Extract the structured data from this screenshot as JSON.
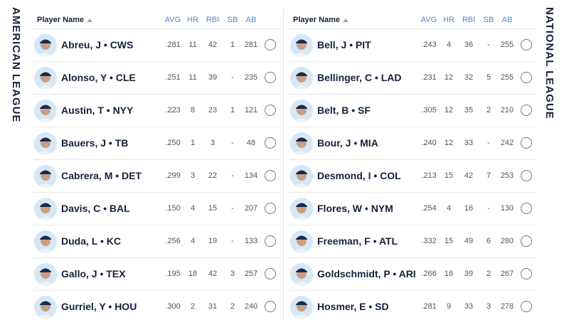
{
  "leagues": [
    {
      "label": "AMERICAN LEAGUE",
      "columns": [
        "Player Name",
        "AVG",
        "HR",
        "RBI",
        "SB",
        "AB"
      ],
      "rows": [
        [
          "Abreu, J • CWS",
          ".281",
          "11",
          "42",
          "1",
          "281"
        ],
        [
          "Alonso, Y • CLE",
          ".251",
          "11",
          "39",
          "-",
          "235"
        ],
        [
          "Austin, T • NYY",
          ".223",
          "8",
          "23",
          "1",
          "121"
        ],
        [
          "Bauers, J • TB",
          ".250",
          "1",
          "3",
          "-",
          "48"
        ],
        [
          "Cabrera, M • DET",
          ".299",
          "3",
          "22",
          "-",
          "134"
        ],
        [
          "Davis, C • BAL",
          ".150",
          "4",
          "15",
          "-",
          "207"
        ],
        [
          "Duda, L • KC",
          ".256",
          "4",
          "19",
          "-",
          "133"
        ],
        [
          "Gallo, J • TEX",
          ".195",
          "18",
          "42",
          "3",
          "257"
        ],
        [
          "Gurriel, Y • HOU",
          ".300",
          "2",
          "31",
          "2",
          "240"
        ]
      ]
    },
    {
      "label": "NATIONAL LEAGUE",
      "columns": [
        "Player Name",
        "AVG",
        "HR",
        "RBI",
        "SB",
        "AB"
      ],
      "rows": [
        [
          "Bell, J • PIT",
          ".243",
          "4",
          "36",
          "-",
          "255"
        ],
        [
          "Bellinger, C • LAD",
          ".231",
          "12",
          "32",
          "5",
          "255"
        ],
        [
          "Belt, B • SF",
          ".305",
          "12",
          "35",
          "2",
          "210"
        ],
        [
          "Bour, J • MIA",
          ".240",
          "12",
          "33",
          "-",
          "242"
        ],
        [
          "Desmond, I • COL",
          ".213",
          "15",
          "42",
          "7",
          "253"
        ],
        [
          "Flores, W • NYM",
          ".254",
          "4",
          "16",
          "-",
          "130"
        ],
        [
          "Freeman, F • ATL",
          ".332",
          "15",
          "49",
          "6",
          "280"
        ],
        [
          "Goldschmidt, P • ARI",
          ".266",
          "16",
          "39",
          "2",
          "267"
        ],
        [
          "Hosmer, E • SD",
          ".281",
          "9",
          "33",
          "3",
          "278"
        ]
      ]
    }
  ]
}
